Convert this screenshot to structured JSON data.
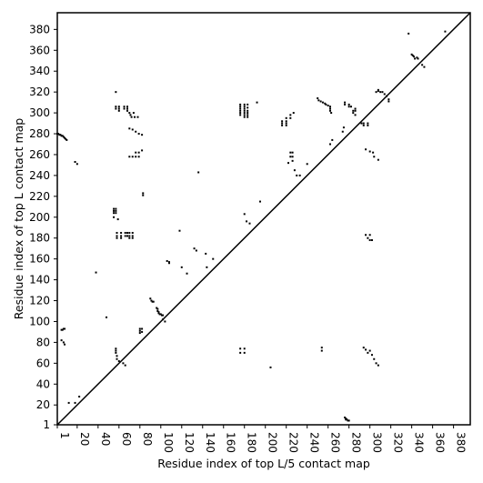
{
  "chart_data": {
    "type": "scatter",
    "title": "",
    "xlabel": "Residue index of top L/5 contact map",
    "ylabel": "Residue index of top L contact map",
    "xlim": [
      1,
      396
    ],
    "ylim": [
      1,
      396
    ],
    "x_ticks": [
      1,
      20,
      40,
      60,
      80,
      100,
      120,
      140,
      160,
      180,
      200,
      220,
      240,
      260,
      280,
      300,
      320,
      340,
      360,
      380
    ],
    "y_ticks": [
      1,
      20,
      40,
      60,
      80,
      100,
      120,
      140,
      160,
      180,
      200,
      220,
      240,
      260,
      280,
      300,
      320,
      340,
      360,
      380
    ],
    "grid": false,
    "diagonal": {
      "from": [
        1,
        1
      ],
      "to": [
        396,
        396
      ]
    },
    "series": [
      {
        "points": [
          [
            1,
            280
          ],
          [
            2,
            280
          ],
          [
            3,
            279
          ],
          [
            4,
            279
          ],
          [
            5,
            278
          ],
          [
            6,
            278
          ],
          [
            7,
            277
          ],
          [
            8,
            276
          ],
          [
            9,
            275
          ],
          [
            10,
            274
          ],
          [
            5,
            92
          ],
          [
            6,
            92
          ],
          [
            7,
            93
          ],
          [
            8,
            93
          ],
          [
            5,
            82
          ],
          [
            7,
            80
          ],
          [
            8,
            78
          ],
          [
            18,
            253
          ],
          [
            20,
            251
          ],
          [
            12,
            22
          ],
          [
            18,
            22
          ],
          [
            22,
            28
          ],
          [
            38,
            147
          ],
          [
            48,
            104
          ],
          [
            57,
            320
          ],
          [
            57,
            306
          ],
          [
            57,
            304
          ],
          [
            60,
            306
          ],
          [
            60,
            304
          ],
          [
            60,
            302
          ],
          [
            65,
            306
          ],
          [
            65,
            304
          ],
          [
            68,
            306
          ],
          [
            68,
            304
          ],
          [
            68,
            302
          ],
          [
            70,
            300
          ],
          [
            71,
            298
          ],
          [
            72,
            296
          ],
          [
            74,
            300
          ],
          [
            75,
            296
          ],
          [
            78,
            296
          ],
          [
            70,
            285
          ],
          [
            73,
            284
          ],
          [
            76,
            282
          ],
          [
            79,
            280
          ],
          [
            82,
            279
          ],
          [
            70,
            258
          ],
          [
            73,
            258
          ],
          [
            76,
            258
          ],
          [
            79,
            258
          ],
          [
            76,
            262
          ],
          [
            79,
            262
          ],
          [
            82,
            264
          ],
          [
            83,
            223
          ],
          [
            83,
            221
          ],
          [
            55,
            208
          ],
          [
            55,
            206
          ],
          [
            55,
            204
          ],
          [
            55,
            200
          ],
          [
            57,
            208
          ],
          [
            57,
            206
          ],
          [
            57,
            204
          ],
          [
            59,
            198
          ],
          [
            58,
            185
          ],
          [
            58,
            182
          ],
          [
            58,
            180
          ],
          [
            62,
            185
          ],
          [
            62,
            182
          ],
          [
            62,
            180
          ],
          [
            66,
            185
          ],
          [
            66,
            182
          ],
          [
            68,
            185
          ],
          [
            68,
            182
          ],
          [
            70,
            185
          ],
          [
            70,
            182
          ],
          [
            70,
            180
          ],
          [
            73,
            185
          ],
          [
            73,
            182
          ],
          [
            73,
            180
          ],
          [
            57,
            74
          ],
          [
            57,
            72
          ],
          [
            57,
            70
          ],
          [
            58,
            67
          ],
          [
            58,
            64
          ],
          [
            60,
            62
          ],
          [
            64,
            60
          ],
          [
            66,
            58
          ],
          [
            80,
            93
          ],
          [
            80,
            91
          ],
          [
            80,
            89
          ],
          [
            82,
            93
          ],
          [
            82,
            90
          ],
          [
            90,
            122
          ],
          [
            91,
            120
          ],
          [
            92,
            119
          ],
          [
            93,
            119
          ],
          [
            96,
            113
          ],
          [
            97,
            112
          ],
          [
            97,
            110
          ],
          [
            98,
            109
          ],
          [
            98,
            108
          ],
          [
            99,
            107
          ],
          [
            100,
            107
          ],
          [
            101,
            106
          ],
          [
            102,
            106
          ],
          [
            102,
            102
          ],
          [
            104,
            100
          ],
          [
            106,
            158
          ],
          [
            108,
            157
          ],
          [
            108,
            156
          ],
          [
            118,
            187
          ],
          [
            120,
            152
          ],
          [
            125,
            146
          ],
          [
            132,
            170
          ],
          [
            134,
            168
          ],
          [
            136,
            243
          ],
          [
            143,
            165
          ],
          [
            144,
            152
          ],
          [
            150,
            160
          ],
          [
            176,
            308
          ],
          [
            176,
            306
          ],
          [
            176,
            304
          ],
          [
            176,
            302
          ],
          [
            176,
            300
          ],
          [
            176,
            298
          ],
          [
            180,
            308
          ],
          [
            180,
            306
          ],
          [
            180,
            304
          ],
          [
            180,
            302
          ],
          [
            180,
            300
          ],
          [
            180,
            298
          ],
          [
            180,
            296
          ],
          [
            183,
            308
          ],
          [
            183,
            305
          ],
          [
            183,
            302
          ],
          [
            183,
            300
          ],
          [
            183,
            298
          ],
          [
            183,
            296
          ],
          [
            180,
            203
          ],
          [
            182,
            196
          ],
          [
            185,
            194
          ],
          [
            192,
            310
          ],
          [
            195,
            215
          ],
          [
            205,
            56
          ],
          [
            176,
            74
          ],
          [
            176,
            70
          ],
          [
            180,
            74
          ],
          [
            180,
            70
          ],
          [
            216,
            292
          ],
          [
            216,
            290
          ],
          [
            216,
            288
          ],
          [
            220,
            295
          ],
          [
            220,
            292
          ],
          [
            220,
            290
          ],
          [
            220,
            288
          ],
          [
            224,
            298
          ],
          [
            224,
            295
          ],
          [
            227,
            300
          ],
          [
            224,
            262
          ],
          [
            224,
            258
          ],
          [
            226,
            262
          ],
          [
            226,
            258
          ],
          [
            226,
            254
          ],
          [
            222,
            252
          ],
          [
            228,
            245
          ],
          [
            230,
            240
          ],
          [
            233,
            240
          ],
          [
            240,
            251
          ],
          [
            250,
            314
          ],
          [
            251,
            312
          ],
          [
            253,
            311
          ],
          [
            255,
            310
          ],
          [
            257,
            309
          ],
          [
            258,
            308
          ],
          [
            260,
            307
          ],
          [
            262,
            306
          ],
          [
            262,
            304
          ],
          [
            262,
            302
          ],
          [
            263,
            300
          ],
          [
            254,
            75
          ],
          [
            254,
            72
          ],
          [
            264,
            274
          ],
          [
            262,
            270
          ],
          [
            274,
            282
          ],
          [
            275,
            286
          ],
          [
            276,
            310
          ],
          [
            276,
            308
          ],
          [
            280,
            308
          ],
          [
            280,
            306
          ],
          [
            282,
            306
          ],
          [
            284,
            302
          ],
          [
            284,
            300
          ],
          [
            286,
            304
          ],
          [
            286,
            302
          ],
          [
            286,
            298
          ],
          [
            292,
            290
          ],
          [
            294,
            290
          ],
          [
            294,
            288
          ],
          [
            298,
            290
          ],
          [
            298,
            288
          ],
          [
            296,
            265
          ],
          [
            300,
            263
          ],
          [
            303,
            262
          ],
          [
            304,
            258
          ],
          [
            308,
            255
          ],
          [
            296,
            183
          ],
          [
            298,
            180
          ],
          [
            300,
            183
          ],
          [
            300,
            178
          ],
          [
            302,
            178
          ],
          [
            294,
            75
          ],
          [
            296,
            73
          ],
          [
            298,
            70
          ],
          [
            300,
            72
          ],
          [
            302,
            68
          ],
          [
            304,
            64
          ],
          [
            306,
            60
          ],
          [
            308,
            58
          ],
          [
            306,
            320
          ],
          [
            308,
            322
          ],
          [
            308,
            321
          ],
          [
            310,
            320
          ],
          [
            312,
            320
          ],
          [
            314,
            318
          ],
          [
            316,
            316
          ],
          [
            318,
            313
          ],
          [
            318,
            311
          ],
          [
            337,
            376
          ],
          [
            340,
            356
          ],
          [
            341,
            355
          ],
          [
            342,
            354
          ],
          [
            343,
            352
          ],
          [
            345,
            353
          ],
          [
            346,
            352
          ],
          [
            350,
            346
          ],
          [
            352,
            344
          ],
          [
            372,
            378
          ],
          [
            276,
            8
          ],
          [
            277,
            7
          ],
          [
            277,
            6
          ],
          [
            278,
            6
          ],
          [
            279,
            5
          ],
          [
            280,
            5
          ]
        ]
      }
    ]
  }
}
